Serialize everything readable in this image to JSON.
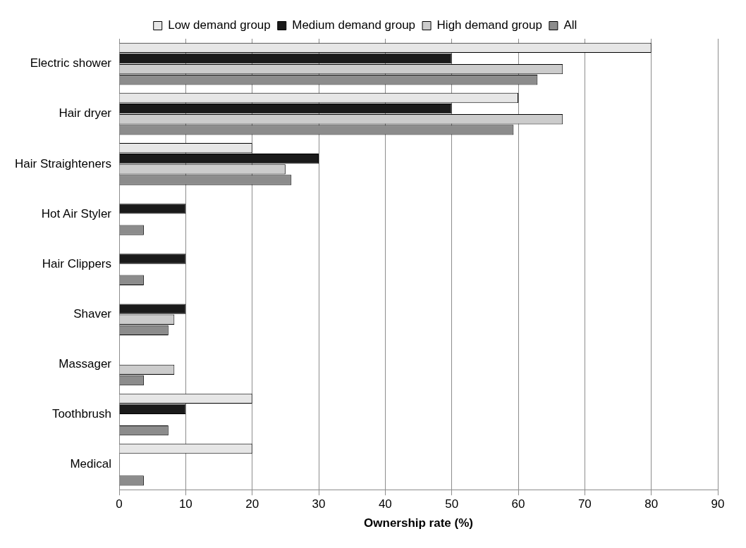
{
  "chart_data": {
    "type": "bar",
    "orientation": "horizontal",
    "xlabel": "Ownership rate (%)",
    "categories": [
      "Electric shower",
      "Hair dryer",
      "Hair Straighteners",
      "Hot Air Styler",
      "Hair Clippers",
      "Shaver",
      "Massager",
      "Toothbrush",
      "Medical"
    ],
    "series": [
      {
        "name": "Low demand group",
        "color": "#e6e6e6",
        "values": [
          80,
          60,
          20,
          null,
          null,
          null,
          null,
          20,
          20
        ]
      },
      {
        "name": "Medium demand group",
        "color": "#1a1a1a",
        "values": [
          50,
          50,
          30,
          10,
          10,
          10,
          null,
          10,
          null
        ]
      },
      {
        "name": "High demand group",
        "color": "#cccccc",
        "values": [
          66.7,
          66.7,
          25,
          null,
          null,
          8.3,
          8.3,
          null,
          null
        ]
      },
      {
        "name": "All",
        "color": "#8c8c8c",
        "values": [
          62.9,
          59.3,
          25.9,
          3.7,
          3.7,
          7.4,
          3.7,
          7.4,
          3.7
        ]
      }
    ],
    "xlim": [
      0,
      90
    ],
    "xticks": [
      0,
      10,
      20,
      30,
      40,
      50,
      60,
      70,
      80,
      90
    ],
    "grid": "x",
    "legend": "top"
  }
}
